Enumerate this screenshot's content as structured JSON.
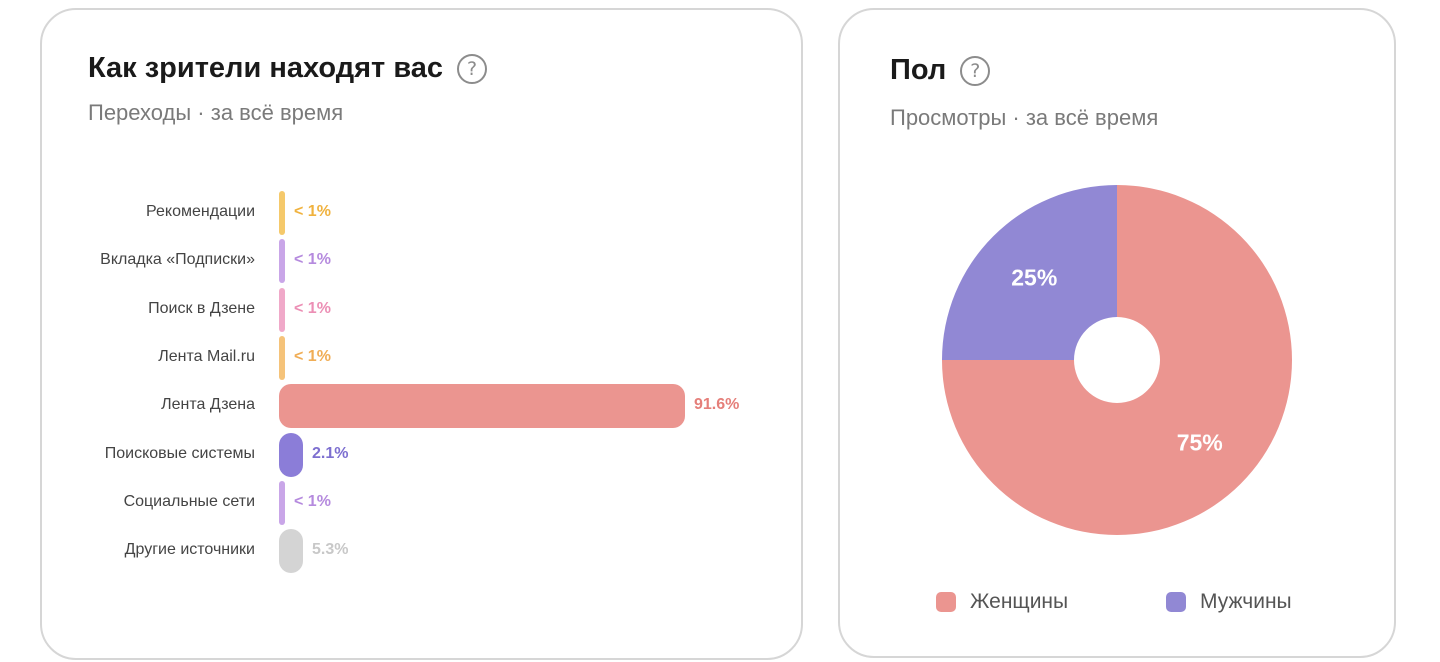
{
  "traffic": {
    "title": "Как зрители находят вас",
    "subtitle": "Переходы · за всё время"
  },
  "gender": {
    "title": "Пол",
    "subtitle": "Просмотры · за всё время"
  },
  "icons": {
    "help": "help-circle-icon"
  },
  "chart_data": [
    {
      "type": "bar",
      "orientation": "horizontal",
      "categories": [
        "Рекомендации",
        "Вкладка «Подписки»",
        "Поиск в Дзене",
        "Лента Mail.ru",
        "Лента Дзена",
        "Поисковые системы",
        "Социальные сети",
        "Другие источники"
      ],
      "values": [
        0.5,
        0.5,
        0.5,
        0.5,
        91.6,
        2.1,
        0.5,
        5.3
      ],
      "value_labels": [
        "< 1%",
        "< 1%",
        "< 1%",
        "< 1%",
        "91.6%",
        "2.1%",
        "< 1%",
        "5.3%"
      ],
      "colors": [
        "#f5c96b",
        "#c9a6e8",
        "#f0a9c9",
        "#f5c37a",
        "#eb9590",
        "#8b7dd8",
        "#c9a6e8",
        "#d4d4d4"
      ],
      "label_colors": [
        "#f0b23e",
        "#b58ade",
        "#ec8fb5",
        "#f0ad55",
        "#e57f7a",
        "#7d6fd0",
        "#b58ade",
        "#c8c8c8"
      ],
      "xlim": [
        0,
        91.6
      ]
    },
    {
      "type": "pie",
      "donut": true,
      "labels": [
        "Женщины",
        "Мужчины"
      ],
      "values": [
        75,
        25
      ],
      "value_labels": [
        "75%",
        "25%"
      ],
      "colors": [
        "#eb9590",
        "#9188d4"
      ],
      "legend": "bottom"
    }
  ]
}
